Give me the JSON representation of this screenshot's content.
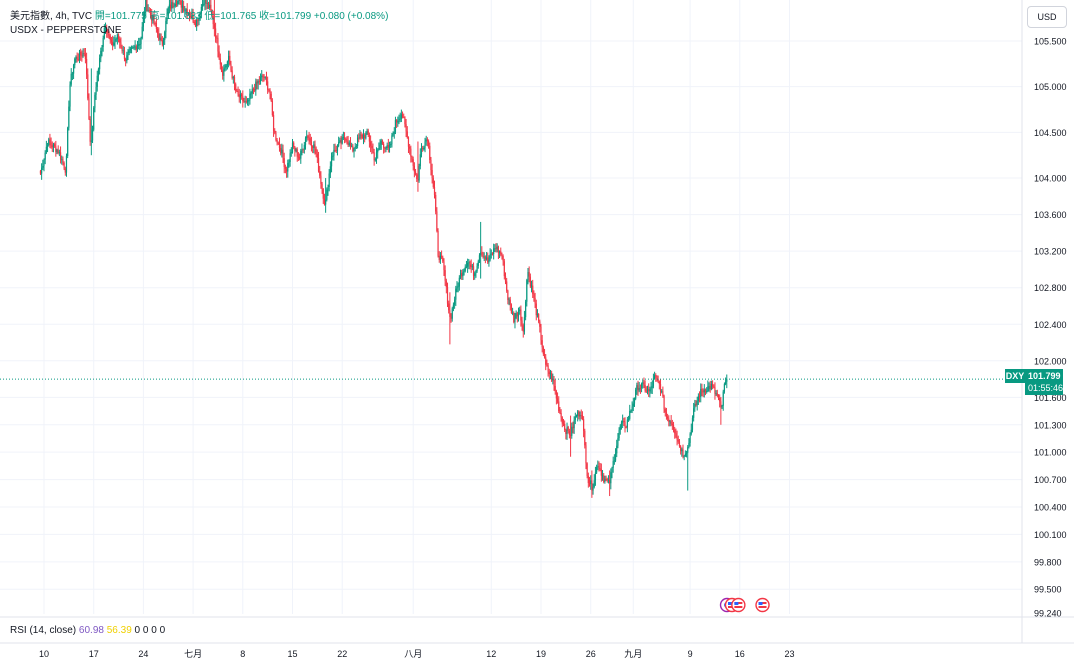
{
  "header": {
    "symbol_line": "美元指數, 4h, TVC",
    "ohlc_text": "開=101.775 高=101.833 低=101.765 收=101.799 +0.080 (+0.08%)",
    "source": "USDX - PEPPERSTONE"
  },
  "currency_button": "USD",
  "rsi": {
    "label": "RSI (14, close)",
    "value1": "60.98",
    "value2": "56.39",
    "extra": "0 0 0 0"
  },
  "price_tag": {
    "ticker": "DXY",
    "price": "101.799",
    "countdown": "01:55:46"
  },
  "colors": {
    "up": "#089981",
    "down": "#f23645",
    "grid": "#f0f3fa",
    "text": "#131722",
    "rsi_line": "#7e57c2",
    "rsi_ma": "#f0d000"
  },
  "chart_data": {
    "type": "candlestick",
    "timeframe": "4h",
    "y_ticks": [
      105.5,
      105.0,
      104.5,
      104.0,
      103.6,
      103.2,
      102.8,
      102.4,
      102.0,
      101.6,
      101.3,
      101.0,
      100.7,
      100.4,
      100.1,
      99.8,
      99.5,
      99.24
    ],
    "y_tick_labels": [
      "105.500",
      "105.000",
      "104.500",
      "104.000",
      "103.600",
      "103.200",
      "102.800",
      "102.400",
      "102.000",
      "101.600",
      "101.300",
      "101.000",
      "100.700",
      "100.400",
      "100.100",
      "99.800",
      "99.500",
      "99.240"
    ],
    "ylim": [
      99.2,
      105.9
    ],
    "x_labels": [
      {
        "label": "10",
        "day": 0
      },
      {
        "label": "17",
        "day": 7
      },
      {
        "label": "24",
        "day": 14
      },
      {
        "label": "七月",
        "day": 21
      },
      {
        "label": "8",
        "day": 28
      },
      {
        "label": "15",
        "day": 35
      },
      {
        "label": "22",
        "day": 42
      },
      {
        "label": "八月",
        "day": 52
      },
      {
        "label": "12",
        "day": 63
      },
      {
        "label": "19",
        "day": 70
      },
      {
        "label": "26",
        "day": 77
      },
      {
        "label": "九月",
        "day": 83
      },
      {
        "label": "9",
        "day": 91
      },
      {
        "label": "16",
        "day": 98
      },
      {
        "label": "23",
        "day": 105
      }
    ],
    "last_price": 101.799,
    "anchors": [
      [
        -0.5,
        104.05
      ],
      [
        0.5,
        104.4
      ],
      [
        2.0,
        104.3
      ],
      [
        3.1,
        104.08
      ],
      [
        3.6,
        105.0
      ],
      [
        4.3,
        105.3
      ],
      [
        5.8,
        105.38
      ],
      [
        6.6,
        104.3
      ],
      [
        7.2,
        104.95
      ],
      [
        8.6,
        105.7
      ],
      [
        9.5,
        105.45
      ],
      [
        10.4,
        105.55
      ],
      [
        11.5,
        105.3
      ],
      [
        12.4,
        105.4
      ],
      [
        13.6,
        105.5
      ],
      [
        14.3,
        105.92
      ],
      [
        15.5,
        105.7
      ],
      [
        16.6,
        105.45
      ],
      [
        17.5,
        105.85
      ],
      [
        18.6,
        105.95
      ],
      [
        20.0,
        105.85
      ],
      [
        21.4,
        105.7
      ],
      [
        22.5,
        105.95
      ],
      [
        23.4,
        105.85
      ],
      [
        24.0,
        105.65
      ],
      [
        25.1,
        105.15
      ],
      [
        26.0,
        105.3
      ],
      [
        27.1,
        104.92
      ],
      [
        28.6,
        104.8
      ],
      [
        29.5,
        104.98
      ],
      [
        30.9,
        105.12
      ],
      [
        31.8,
        104.95
      ],
      [
        32.4,
        104.5
      ],
      [
        33.4,
        104.3
      ],
      [
        34.1,
        104.08
      ],
      [
        35.0,
        104.35
      ],
      [
        36.0,
        104.22
      ],
      [
        37.0,
        104.48
      ],
      [
        38.2,
        104.32
      ],
      [
        38.8,
        104.05
      ],
      [
        39.6,
        103.7
      ],
      [
        40.5,
        104.25
      ],
      [
        41.4,
        104.35
      ],
      [
        42.5,
        104.45
      ],
      [
        43.4,
        104.3
      ],
      [
        44.5,
        104.45
      ],
      [
        45.6,
        104.48
      ],
      [
        46.6,
        104.2
      ],
      [
        47.5,
        104.4
      ],
      [
        48.6,
        104.3
      ],
      [
        49.5,
        104.6
      ],
      [
        50.4,
        104.72
      ],
      [
        51.0,
        104.5
      ],
      [
        52.0,
        104.15
      ],
      [
        52.6,
        103.95
      ],
      [
        53.1,
        104.32
      ],
      [
        54.0,
        104.45
      ],
      [
        55.0,
        103.8
      ],
      [
        55.5,
        103.18
      ],
      [
        56.2,
        103.05
      ],
      [
        57.2,
        102.45
      ],
      [
        58.0,
        102.75
      ],
      [
        58.7,
        102.95
      ],
      [
        59.7,
        103.1
      ],
      [
        60.6,
        102.95
      ],
      [
        61.5,
        103.22
      ],
      [
        62.5,
        103.08
      ],
      [
        63.6,
        103.25
      ],
      [
        64.5,
        103.15
      ],
      [
        65.3,
        102.7
      ],
      [
        66.2,
        102.45
      ],
      [
        67.0,
        102.58
      ],
      [
        67.5,
        102.3
      ],
      [
        68.1,
        103.0
      ],
      [
        68.8,
        102.75
      ],
      [
        69.8,
        102.35
      ],
      [
        70.6,
        101.95
      ],
      [
        71.6,
        101.8
      ],
      [
        72.6,
        101.45
      ],
      [
        73.4,
        101.25
      ],
      [
        74.2,
        101.2
      ],
      [
        74.9,
        101.4
      ],
      [
        75.7,
        101.45
      ],
      [
        76.6,
        100.7
      ],
      [
        77.2,
        100.62
      ],
      [
        78.0,
        100.88
      ],
      [
        78.8,
        100.72
      ],
      [
        79.6,
        100.65
      ],
      [
        80.4,
        100.98
      ],
      [
        81.2,
        101.3
      ],
      [
        82.0,
        101.3
      ],
      [
        82.8,
        101.5
      ],
      [
        83.6,
        101.72
      ],
      [
        84.4,
        101.72
      ],
      [
        85.3,
        101.65
      ],
      [
        86.0,
        101.82
      ],
      [
        86.8,
        101.72
      ],
      [
        87.6,
        101.4
      ],
      [
        88.5,
        101.32
      ],
      [
        89.4,
        101.1
      ],
      [
        90.0,
        100.98
      ],
      [
        90.7,
        101.05
      ],
      [
        91.5,
        101.45
      ],
      [
        92.4,
        101.65
      ],
      [
        93.2,
        101.7
      ],
      [
        94.0,
        101.72
      ],
      [
        94.9,
        101.6
      ],
      [
        95.4,
        101.45
      ],
      [
        95.8,
        101.72
      ],
      [
        96.3,
        101.8
      ]
    ],
    "spikes": [
      [
        6.6,
        104.25,
        105.2
      ],
      [
        24.0,
        105.55,
        105.95
      ],
      [
        39.6,
        103.62,
        104.0
      ],
      [
        52.6,
        103.85,
        104.4
      ],
      [
        57.2,
        102.18,
        102.75
      ],
      [
        61.5,
        102.9,
        103.52
      ],
      [
        74.2,
        100.95,
        101.4
      ],
      [
        77.2,
        100.5,
        100.8
      ],
      [
        79.6,
        100.52,
        100.8
      ],
      [
        90.7,
        100.58,
        101.05
      ],
      [
        95.4,
        101.3,
        101.55
      ]
    ],
    "events": [
      {
        "icon": "calendar-event-icon",
        "day": 96.2
      },
      {
        "icon": "us-flag-icon",
        "day": 96.9
      },
      {
        "icon": "us-flag-icon",
        "day": 97.8
      },
      {
        "icon": "us-flag-icon",
        "day": 101.2
      }
    ]
  }
}
